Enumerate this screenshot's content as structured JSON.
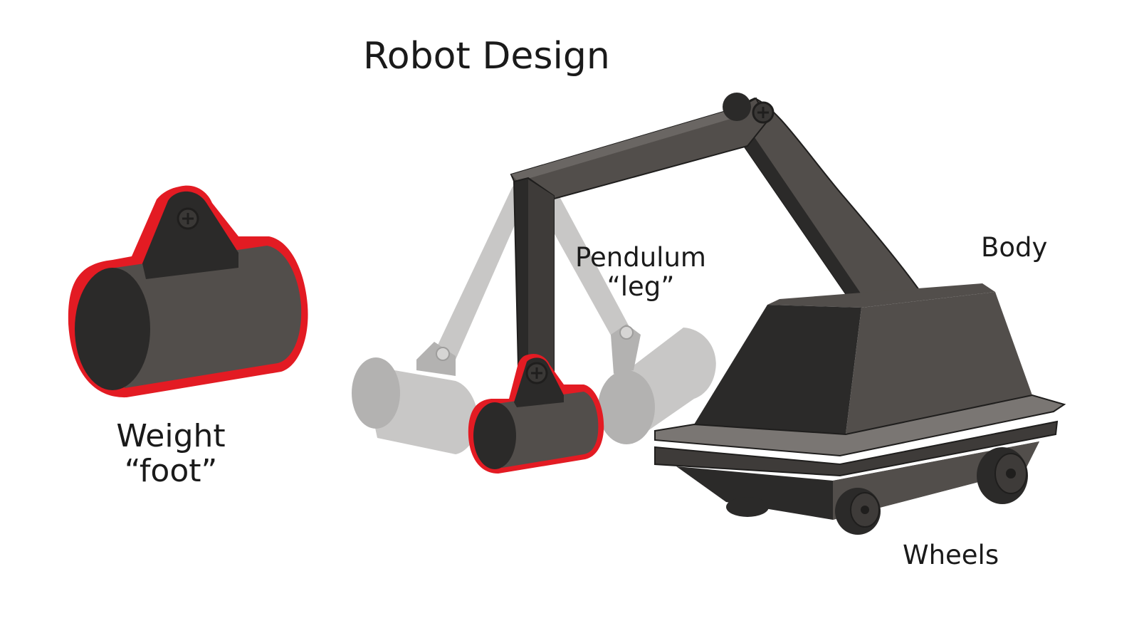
{
  "title": "Robot Design",
  "labels": {
    "foot_line1": "Weight",
    "foot_line2": "“foot”",
    "leg_line1": "Pendulum",
    "leg_line2": "“leg”",
    "body": "Body",
    "wheels": "Wheels"
  },
  "colors": {
    "outline": "#e31b23",
    "dark": "#2b2a29",
    "mid": "#524e4b",
    "ghost": "#c8c7c6"
  }
}
